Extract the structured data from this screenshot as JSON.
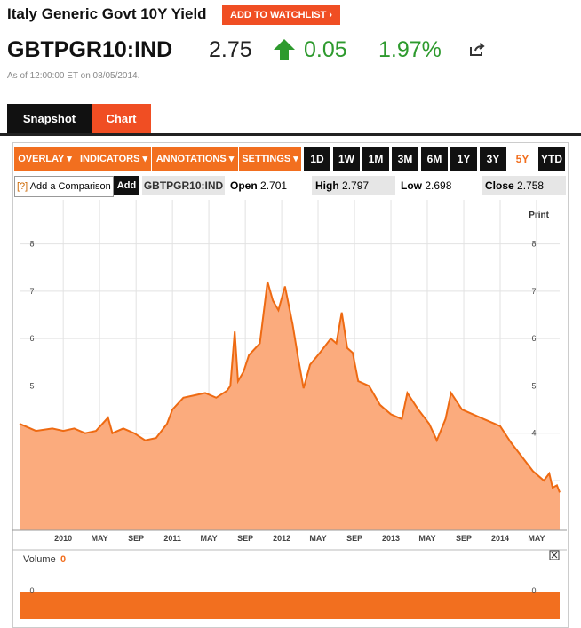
{
  "header": {
    "title": "Italy Generic Govt 10Y Yield",
    "watchlist_button": "ADD TO WATCHLIST",
    "ticker": "GBTPGR10:IND",
    "price": "2.75",
    "change": "0.05",
    "change_percent": "1.97%",
    "timestamp": "As of 12:00:00 ET on 08/05/2014."
  },
  "tabs": [
    "Snapshot",
    "Chart"
  ],
  "toolbar": {
    "menus": [
      "OVERLAY",
      "INDICATORS",
      "ANNOTATIONS",
      "SETTINGS"
    ],
    "ranges": [
      "1D",
      "1W",
      "1M",
      "3M",
      "6M",
      "1Y",
      "3Y",
      "5Y",
      "YTD"
    ],
    "active_range": "5Y"
  },
  "quote_bar": {
    "help": "[?]",
    "comparison": "Add a Comparison",
    "add": "Add",
    "ticker": "GBTPGR10:IND",
    "open_label": "Open",
    "open": "2.701",
    "high_label": "High",
    "high": "2.797",
    "low_label": "Low",
    "low": "2.698",
    "close_label": "Close",
    "close": "2.758"
  },
  "print": "Print",
  "chart_data": {
    "type": "area",
    "color": "#ee6a12",
    "fill": "#fbab7d",
    "grid": true,
    "x": [
      2009.6,
      2009.75,
      2009.9,
      2010.0,
      2010.1,
      2010.2,
      2010.3,
      2010.41,
      2010.45,
      2010.55,
      2010.65,
      2010.75,
      2010.85,
      2010.95,
      2011.0,
      2011.1,
      2011.2,
      2011.3,
      2011.4,
      2011.5,
      2011.53,
      2011.57,
      2011.6,
      2011.65,
      2011.7,
      2011.8,
      2011.87,
      2011.92,
      2011.97,
      2012.03,
      2012.1,
      2012.15,
      2012.2,
      2012.26,
      2012.35,
      2012.45,
      2012.5,
      2012.55,
      2012.6,
      2012.65,
      2012.7,
      2012.8,
      2012.9,
      2013.0,
      2013.1,
      2013.15,
      2013.25,
      2013.35,
      2013.42,
      2013.5,
      2013.55,
      2013.65,
      2013.75,
      2013.85,
      2013.95,
      2014.0,
      2014.1,
      2014.2,
      2014.3,
      2014.4,
      2014.45,
      2014.48,
      2014.52,
      2014.545
    ],
    "values": [
      4.2,
      4.05,
      4.1,
      4.05,
      4.1,
      4.0,
      4.05,
      4.33,
      4.0,
      4.1,
      4.0,
      3.85,
      3.9,
      4.2,
      4.5,
      4.75,
      4.8,
      4.85,
      4.75,
      4.9,
      5.0,
      6.15,
      5.1,
      5.3,
      5.65,
      5.9,
      7.2,
      6.8,
      6.6,
      7.1,
      6.3,
      5.6,
      4.95,
      5.45,
      5.7,
      6.0,
      5.9,
      6.55,
      5.8,
      5.7,
      5.1,
      5.0,
      4.6,
      4.4,
      4.3,
      4.85,
      4.5,
      4.2,
      3.85,
      4.3,
      4.85,
      4.5,
      4.4,
      4.3,
      4.2,
      4.15,
      3.8,
      3.5,
      3.2,
      3.0,
      3.15,
      2.85,
      2.9,
      2.75
    ],
    "xlim": [
      2009.6,
      2014.545
    ],
    "ylim": [
      1.95,
      8.93
    ],
    "yticks": [
      3,
      4,
      5,
      6,
      7,
      8
    ],
    "xticks": [
      {
        "value": 2010,
        "label": "2010"
      },
      {
        "value": 2010.333,
        "label": "MAY"
      },
      {
        "value": 2010.667,
        "label": "SEP"
      },
      {
        "value": 2011,
        "label": "2011"
      },
      {
        "value": 2011.333,
        "label": "MAY"
      },
      {
        "value": 2011.667,
        "label": "SEP"
      },
      {
        "value": 2012,
        "label": "2012"
      },
      {
        "value": 2012.333,
        "label": "MAY"
      },
      {
        "value": 2012.667,
        "label": "SEP"
      },
      {
        "value": 2013,
        "label": "2013"
      },
      {
        "value": 2013.333,
        "label": "MAY"
      },
      {
        "value": 2013.667,
        "label": "SEP"
      },
      {
        "value": 2014,
        "label": "2014"
      },
      {
        "value": 2014.333,
        "label": "MAY"
      }
    ]
  },
  "volume": {
    "label": "Volume",
    "value": 0,
    "yticks": [
      0
    ]
  }
}
